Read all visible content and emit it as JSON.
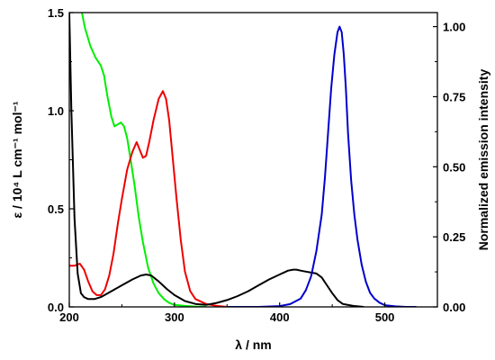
{
  "chart_data": {
    "type": "line",
    "xlabel": "λ / nm",
    "ylabel_left": "ε / 10⁴ L cm⁻¹ mol⁻¹",
    "ylabel_right": "Normalized emission intensity",
    "xlim": [
      200,
      550
    ],
    "ylim_left": [
      0,
      1.5
    ],
    "ylim_right": [
      0,
      1.05
    ],
    "x_ticks": [
      "200",
      "300",
      "400",
      "500"
    ],
    "x_tick_values": [
      200,
      300,
      400,
      500
    ],
    "y_left_ticks": [
      "0.0",
      "0.5",
      "1.0",
      "1.5"
    ],
    "y_left_tick_values": [
      0,
      0.5,
      1.0,
      1.5
    ],
    "y_right_ticks": [
      "0.00",
      "0.25",
      "0.50",
      "0.75",
      "1.00"
    ],
    "y_right_tick_values": [
      0,
      0.25,
      0.5,
      0.75,
      1.0
    ],
    "grid": false,
    "series": [
      {
        "color": "#00ee00",
        "axis": "left",
        "x": [
          212,
          215,
          220,
          225,
          230,
          233,
          236,
          240,
          243,
          246,
          249,
          252,
          255,
          258,
          262,
          266,
          270,
          275,
          280,
          285,
          290,
          295,
          300,
          310,
          320,
          330
        ],
        "y": [
          1.5,
          1.42,
          1.33,
          1.27,
          1.23,
          1.18,
          1.08,
          0.97,
          0.92,
          0.93,
          0.94,
          0.92,
          0.86,
          0.76,
          0.62,
          0.46,
          0.33,
          0.2,
          0.12,
          0.07,
          0.04,
          0.02,
          0.01,
          0.005,
          0.002,
          0.0
        ]
      },
      {
        "color": "#ee0000",
        "axis": "left",
        "x": [
          200,
          205,
          210,
          214,
          218,
          222,
          226,
          230,
          234,
          238,
          242,
          246,
          250,
          255,
          260,
          264,
          267,
          270,
          273,
          276,
          280,
          285,
          289,
          292,
          295,
          298,
          302,
          306,
          310,
          315,
          320,
          330,
          340,
          350
        ],
        "y": [
          0.21,
          0.21,
          0.22,
          0.19,
          0.13,
          0.08,
          0.06,
          0.06,
          0.09,
          0.16,
          0.27,
          0.42,
          0.55,
          0.7,
          0.79,
          0.84,
          0.8,
          0.76,
          0.77,
          0.84,
          0.95,
          1.06,
          1.1,
          1.06,
          0.95,
          0.78,
          0.55,
          0.34,
          0.18,
          0.08,
          0.04,
          0.015,
          0.005,
          0.0
        ]
      },
      {
        "color": "#000000",
        "axis": "left",
        "x": [
          200,
          202,
          205,
          208,
          211,
          214,
          218,
          224,
          230,
          240,
          250,
          260,
          268,
          273,
          278,
          285,
          293,
          300,
          310,
          320,
          330,
          340,
          350,
          360,
          370,
          380,
          390,
          400,
          408,
          413,
          416,
          420,
          425,
          430,
          435,
          440,
          445,
          450,
          455,
          460,
          470,
          480
        ],
        "y": [
          1.5,
          1.0,
          0.45,
          0.17,
          0.07,
          0.05,
          0.04,
          0.04,
          0.05,
          0.08,
          0.11,
          0.14,
          0.16,
          0.165,
          0.16,
          0.13,
          0.09,
          0.06,
          0.03,
          0.015,
          0.01,
          0.02,
          0.035,
          0.055,
          0.08,
          0.11,
          0.14,
          0.165,
          0.185,
          0.19,
          0.19,
          0.185,
          0.18,
          0.175,
          0.17,
          0.15,
          0.11,
          0.07,
          0.035,
          0.015,
          0.005,
          0.0
        ]
      },
      {
        "color": "#0000cc",
        "axis": "right",
        "x": [
          350,
          380,
          400,
          410,
          420,
          425,
          430,
          435,
          440,
          443,
          446,
          449,
          452,
          455,
          457,
          459,
          461,
          463,
          465,
          468,
          471,
          474,
          478,
          482,
          486,
          490,
          495,
          500,
          510,
          520,
          530
        ],
        "y": [
          0.0,
          0.0,
          0.003,
          0.01,
          0.03,
          0.06,
          0.11,
          0.2,
          0.33,
          0.46,
          0.62,
          0.78,
          0.9,
          0.98,
          1.0,
          0.98,
          0.9,
          0.78,
          0.62,
          0.45,
          0.33,
          0.24,
          0.15,
          0.09,
          0.05,
          0.03,
          0.015,
          0.006,
          0.002,
          0.0,
          0.0
        ]
      }
    ]
  }
}
